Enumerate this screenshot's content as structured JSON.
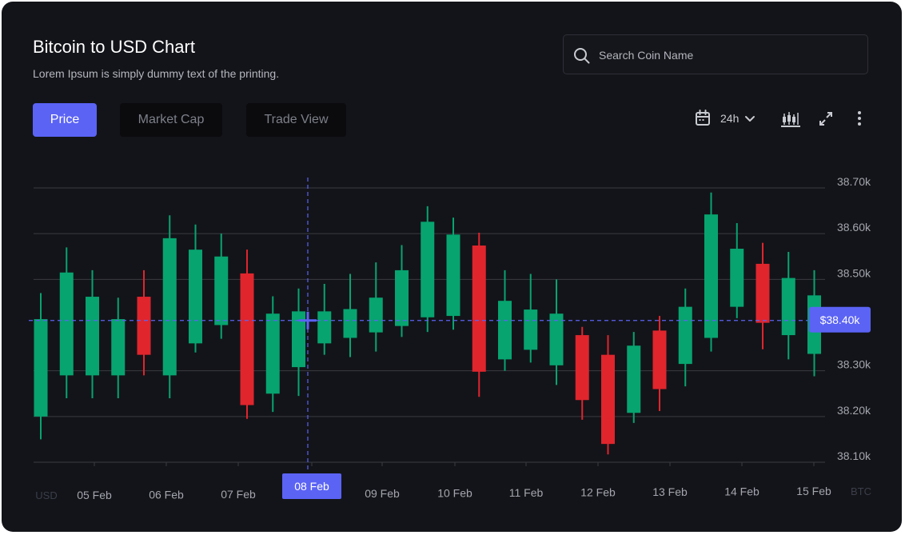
{
  "header": {
    "title": "Bitcoin to USD Chart",
    "subtitle": "Lorem Ipsum is simply dummy text of the printing."
  },
  "search": {
    "placeholder": "Search Coin Name",
    "icon": "search-icon"
  },
  "tabs": [
    {
      "label": "Price",
      "active": true
    },
    {
      "label": "Market Cap",
      "active": false
    },
    {
      "label": "Trade View",
      "active": false
    }
  ],
  "toolbar": {
    "range_label": "24h",
    "icons": [
      "calendar-icon",
      "chevron-down-icon",
      "candlestick-icon",
      "expand-icon",
      "more-vertical-icon"
    ]
  },
  "colors": {
    "background": "#131419",
    "up": "#07a46f",
    "down": "#e0252d",
    "accent": "#5b63f5",
    "grid": "#3a3b42",
    "axis_text": "#a4a6ae"
  },
  "chart_data": {
    "type": "candlestick",
    "x_axis": {
      "labels": [
        "05 Feb",
        "06 Feb",
        "07 Feb",
        "08 Feb",
        "09 Feb",
        "10 Feb",
        "11 Feb",
        "12 Feb",
        "13 Feb",
        "14 Feb",
        "15 Feb"
      ],
      "left_unit": "USD",
      "right_unit": "BTC"
    },
    "y_axis": {
      "ticks": [
        "38.70k",
        "38.60k",
        "38.50k",
        "38.40k",
        "38.30k",
        "38.20k",
        "38.10k"
      ],
      "ylim": [
        38100,
        38700
      ]
    },
    "crosshair": {
      "x_label": "08 Feb",
      "price": 38410,
      "price_label": "$38.40k"
    },
    "candles": [
      {
        "open": 38200,
        "high": 38470,
        "low": 38150,
        "close": 38413
      },
      {
        "open": 38290,
        "high": 38570,
        "low": 38240,
        "close": 38515
      },
      {
        "open": 38290,
        "high": 38520,
        "low": 38240,
        "close": 38462
      },
      {
        "open": 38290,
        "high": 38460,
        "low": 38240,
        "close": 38413
      },
      {
        "open": 38462,
        "high": 38520,
        "low": 38290,
        "close": 38335
      },
      {
        "open": 38290,
        "high": 38640,
        "low": 38240,
        "close": 38590
      },
      {
        "open": 38360,
        "high": 38620,
        "low": 38340,
        "close": 38565
      },
      {
        "open": 38400,
        "high": 38600,
        "low": 38370,
        "close": 38550
      },
      {
        "open": 38513,
        "high": 38565,
        "low": 38195,
        "close": 38225
      },
      {
        "open": 38250,
        "high": 38463,
        "low": 38210,
        "close": 38425
      },
      {
        "open": 38308,
        "high": 38480,
        "low": 38245,
        "close": 38430
      },
      {
        "open": 38360,
        "high": 38490,
        "low": 38335,
        "close": 38430
      },
      {
        "open": 38372,
        "high": 38512,
        "low": 38330,
        "close": 38435
      },
      {
        "open": 38384,
        "high": 38537,
        "low": 38342,
        "close": 38460
      },
      {
        "open": 38398,
        "high": 38575,
        "low": 38374,
        "close": 38520
      },
      {
        "open": 38417,
        "high": 38660,
        "low": 38385,
        "close": 38626
      },
      {
        "open": 38420,
        "high": 38635,
        "low": 38390,
        "close": 38598
      },
      {
        "open": 38574,
        "high": 38602,
        "low": 38243,
        "close": 38298
      },
      {
        "open": 38325,
        "high": 38520,
        "low": 38300,
        "close": 38453
      },
      {
        "open": 38346,
        "high": 38512,
        "low": 38318,
        "close": 38434
      },
      {
        "open": 38312,
        "high": 38500,
        "low": 38269,
        "close": 38425
      },
      {
        "open": 38378,
        "high": 38396,
        "low": 38193,
        "close": 38236
      },
      {
        "open": 38335,
        "high": 38378,
        "low": 38117,
        "close": 38140
      },
      {
        "open": 38208,
        "high": 38385,
        "low": 38186,
        "close": 38355
      },
      {
        "open": 38388,
        "high": 38420,
        "low": 38212,
        "close": 38260
      },
      {
        "open": 38315,
        "high": 38480,
        "low": 38266,
        "close": 38440
      },
      {
        "open": 38372,
        "high": 38690,
        "low": 38342,
        "close": 38642
      },
      {
        "open": 38440,
        "high": 38623,
        "low": 38415,
        "close": 38567
      },
      {
        "open": 38534,
        "high": 38580,
        "low": 38347,
        "close": 38405
      },
      {
        "open": 38378,
        "high": 38560,
        "low": 38325,
        "close": 38503
      },
      {
        "open": 38337,
        "high": 38520,
        "low": 38288,
        "close": 38465
      }
    ]
  }
}
